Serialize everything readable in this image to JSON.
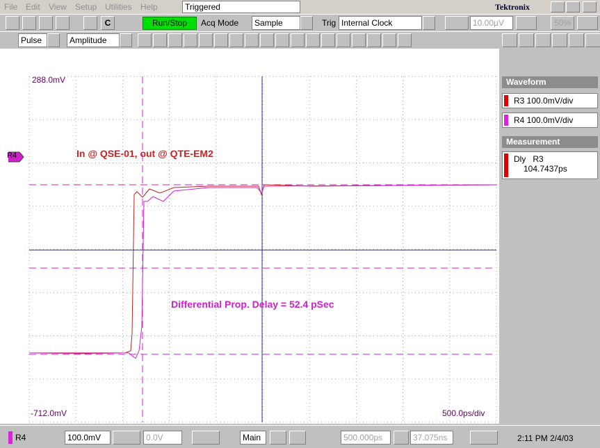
{
  "menu": {
    "items": [
      "File",
      "Edit",
      "View",
      "Setup",
      "Utilities",
      "Help"
    ],
    "status": "Triggered",
    "brand": "Tektronix"
  },
  "toolbar": {
    "c_button": "C",
    "run_stop": "Run/Stop",
    "acq_mode_label": "Acq Mode",
    "acq_mode": "Sample",
    "trig_label": "Trig",
    "trig_source": "Internal Clock",
    "trig_level": "10.00µV",
    "trig_percent": "50%"
  },
  "measure_bar": {
    "category": "Pulse",
    "measurement": "Amplitude"
  },
  "display": {
    "top_level": "288.0mV",
    "bottom_level": "-712.0mV",
    "timebase": "500.0ps/div",
    "marker": "R4",
    "annotation_1": "In @ QSE-01, out @ QTE-EM2",
    "annotation_2": "Differential Prop. Delay = 52.4 pSec"
  },
  "side_panel": {
    "waveform_header": "Waveform",
    "waveforms": [
      "R3 100.0mV/div",
      "R4 100.0mV/div"
    ],
    "measurement_header": "Measurement",
    "measurement": {
      "type": "Dly",
      "source": "R3",
      "value": "104.7437ps"
    }
  },
  "status_bar": {
    "channel": "R4",
    "scale": "100.0mV",
    "offset": "0.0V",
    "timebase_mode": "Main",
    "horizontal_scale": "500.000ps",
    "position": "37.075ns",
    "clock": "2:11 PM 2/4/03"
  }
}
